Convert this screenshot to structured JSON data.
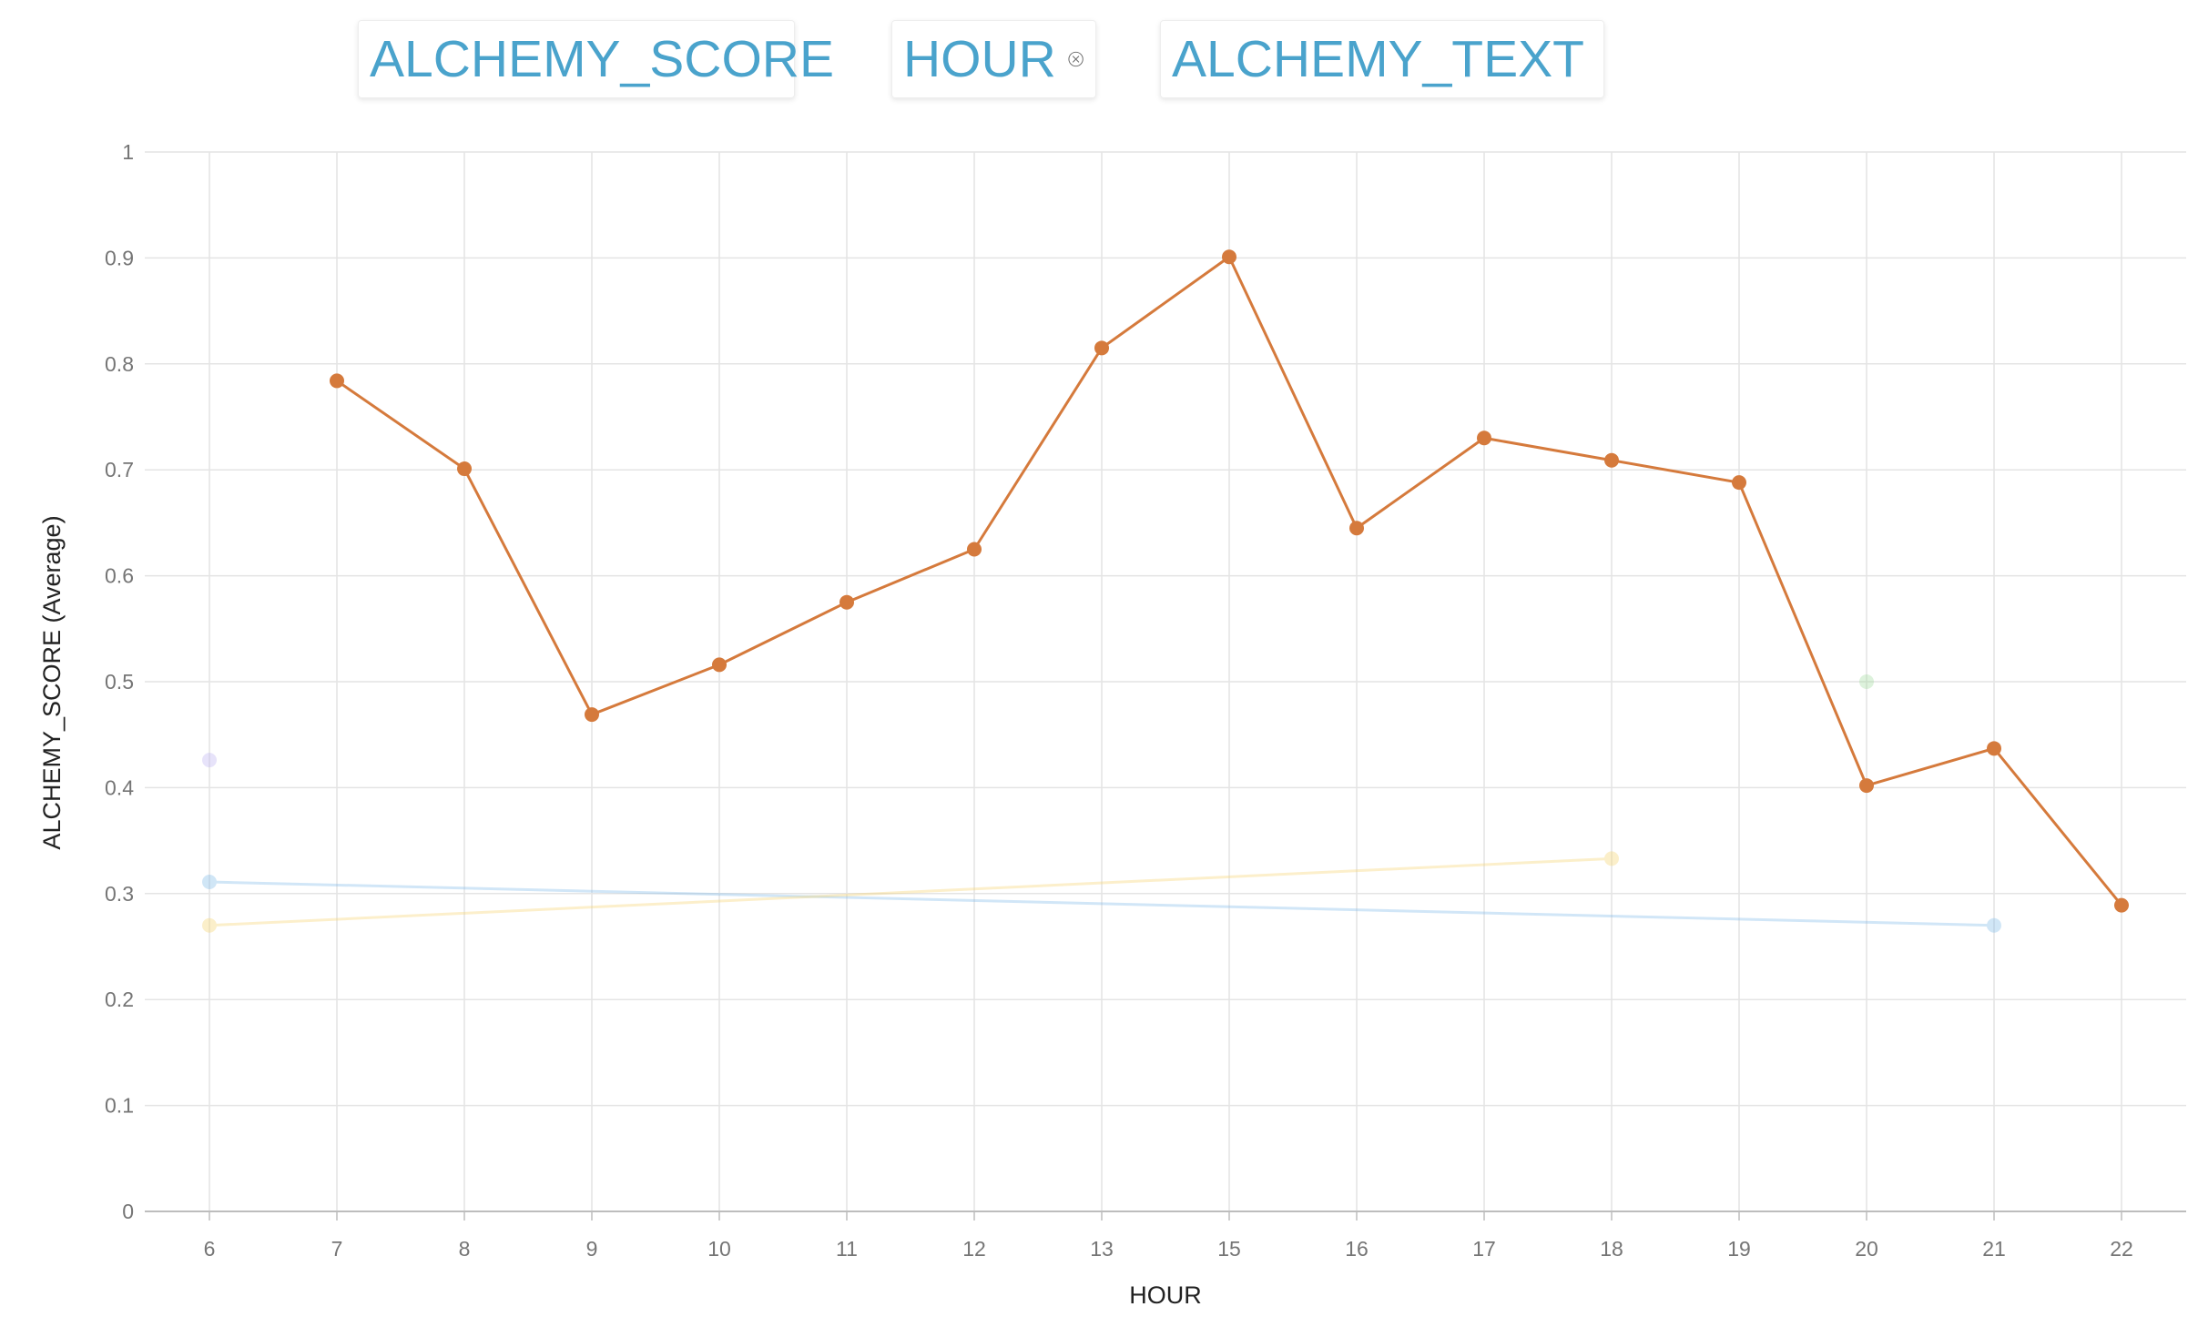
{
  "header": {
    "pills": [
      {
        "label": "ALCHEMY_SCORE",
        "closable": false
      },
      {
        "label": "HOUR",
        "closable": true
      },
      {
        "label": "ALCHEMY_TEXT",
        "closable": true
      }
    ],
    "accent_color": "#4aa3cc",
    "close_icon": "circle-x-icon"
  },
  "chart_data": {
    "type": "line",
    "xlabel": "HOUR",
    "ylabel": "ALCHEMY_SCORE (Average)",
    "x_categories": [
      "6",
      "7",
      "8",
      "9",
      "10",
      "11",
      "12",
      "13",
      "15",
      "16",
      "17",
      "18",
      "19",
      "20",
      "21",
      "22"
    ],
    "y_ticks": [
      "0",
      "0.1",
      "0.2",
      "0.3",
      "0.4",
      "0.5",
      "0.6",
      "0.7",
      "0.8",
      "0.9",
      "1"
    ],
    "ylim": [
      0,
      1
    ],
    "grid": true,
    "series": [
      {
        "color": "#d57a3c",
        "opacity": 1,
        "points": [
          [
            "7",
            0.784
          ],
          [
            "8",
            0.701
          ],
          [
            "9",
            0.469
          ],
          [
            "10",
            0.516
          ],
          [
            "11",
            0.575
          ],
          [
            "12",
            0.625
          ],
          [
            "13",
            0.815
          ],
          [
            "15",
            0.901
          ],
          [
            "16",
            0.645
          ],
          [
            "17",
            0.73
          ],
          [
            "18",
            0.709
          ],
          [
            "19",
            0.688
          ],
          [
            "20",
            0.402
          ],
          [
            "21",
            0.437
          ],
          [
            "22",
            0.289
          ]
        ]
      },
      {
        "color": "#7cb8e8",
        "opacity": 0.35,
        "points": [
          [
            "6",
            0.311
          ],
          [
            "21",
            0.27
          ]
        ]
      },
      {
        "color": "#f5d26b",
        "opacity": 0.35,
        "points": [
          [
            "6",
            0.27
          ],
          [
            "18",
            0.333
          ]
        ]
      },
      {
        "color": "#b9b0f0",
        "opacity": 0.35,
        "points": [
          [
            "6",
            0.426
          ]
        ]
      },
      {
        "color": "#9fdb9a",
        "opacity": 0.35,
        "points": [
          [
            "20",
            0.5
          ]
        ]
      }
    ]
  }
}
